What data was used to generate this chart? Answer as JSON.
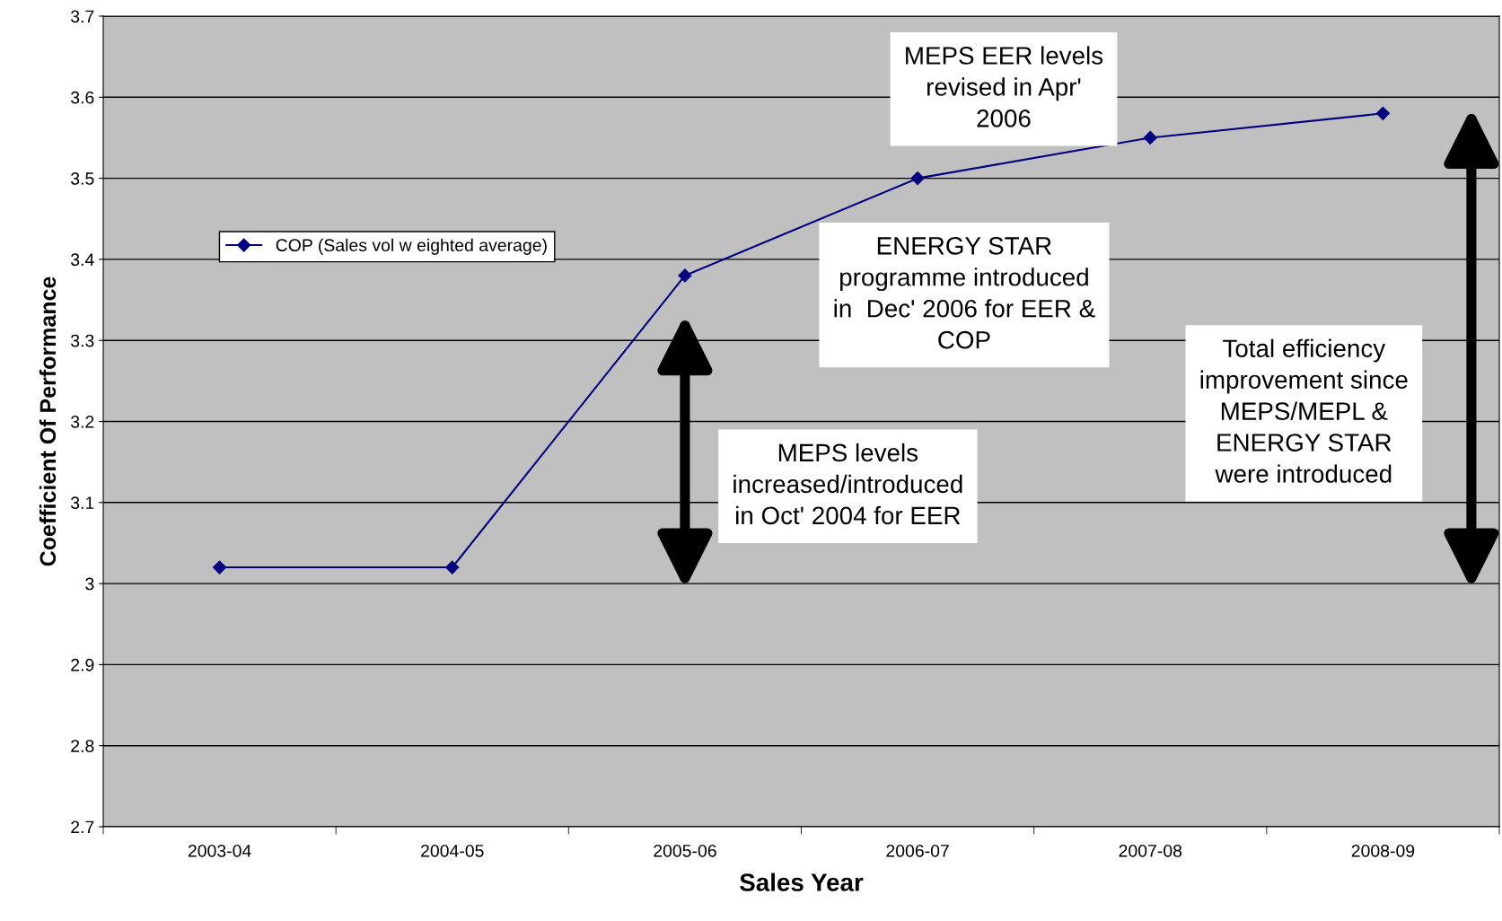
{
  "chart_data": {
    "type": "line",
    "xlabel": "Sales Year",
    "ylabel": "Coefficient Of Performance",
    "categories": [
      "2003-04",
      "2004-05",
      "2005-06",
      "2006-07",
      "2007-08",
      "2008-09"
    ],
    "series": [
      {
        "name": "COP (Sales vol w eighted average)",
        "color": "#000080",
        "values": [
          3.02,
          3.02,
          3.38,
          3.5,
          3.55,
          3.58
        ]
      }
    ],
    "ylim": [
      2.7,
      3.7
    ],
    "yticks": [
      2.7,
      2.8,
      2.9,
      3,
      3.1,
      3.2,
      3.3,
      3.4,
      3.5,
      3.6,
      3.7
    ],
    "grid": "y",
    "legend": "top left",
    "marker": "diamond",
    "line_style": "solid",
    "annotations": [
      "MEPS EER levels\nrevised in Apr'\n2006",
      "ENERGY STAR\nprogramme introduced\nin  Dec' 2006 for EER &\nCOP",
      "MEPS levels\nincreased/introduced\nin Oct' 2004 for EER",
      "Total efficiency\nimprovement since\nMEPS/MEPL &\nENERGY STAR\nwere introduced"
    ]
  }
}
